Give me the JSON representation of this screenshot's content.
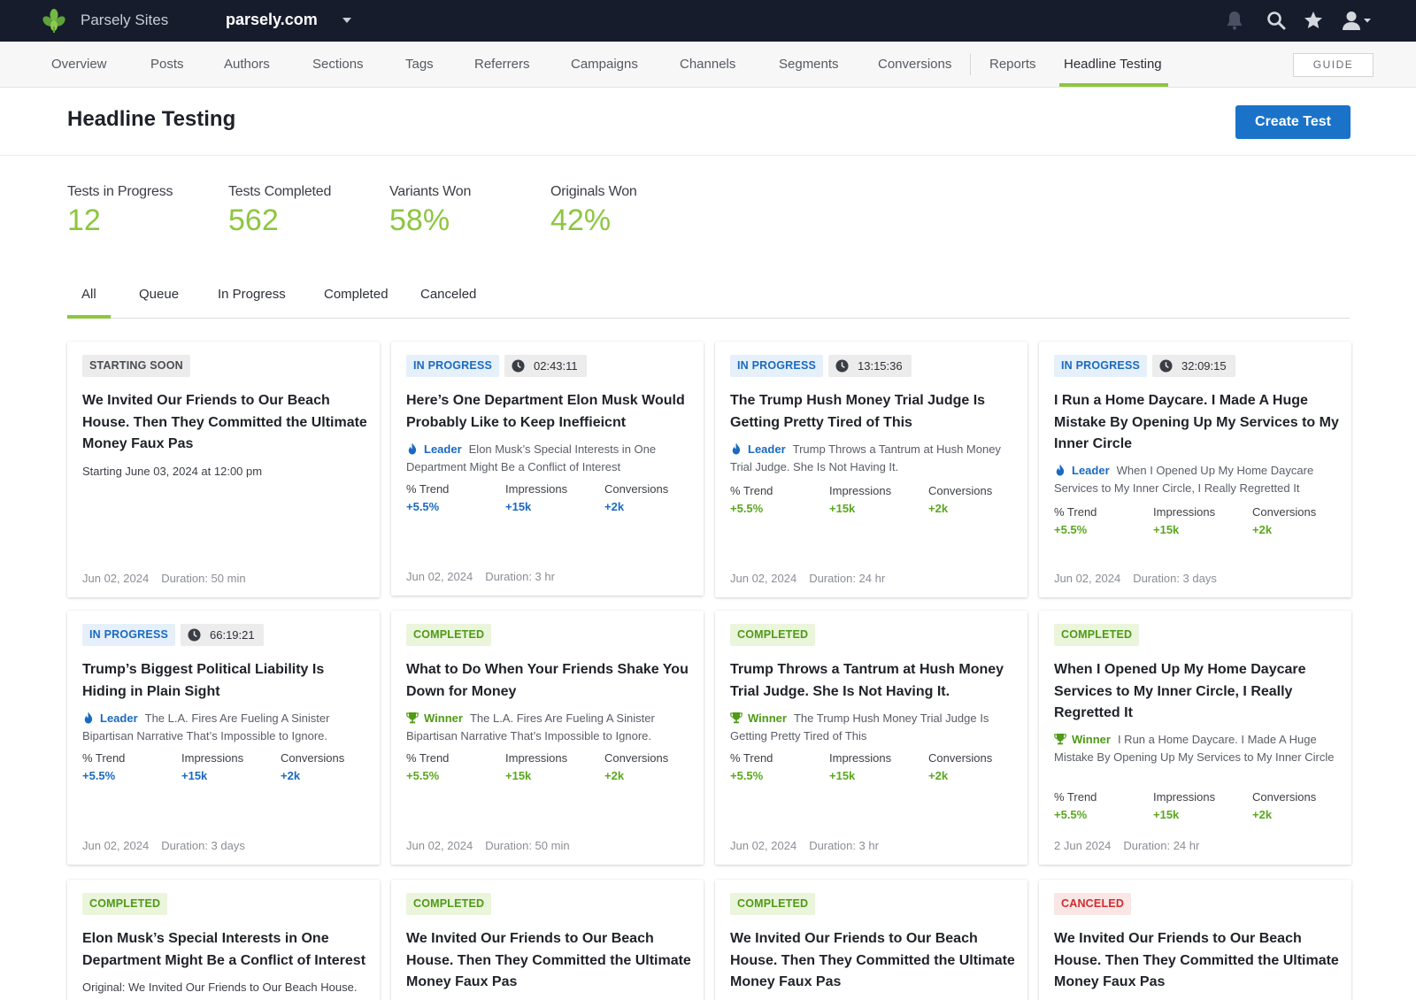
{
  "topbar": {
    "brand": "Parsely Sites",
    "site": "parsely.com"
  },
  "nav": {
    "items": [
      "Overview",
      "Posts",
      "Authors",
      "Sections",
      "Tags",
      "Referrers",
      "Campaigns",
      "Channels",
      "Segments",
      "Conversions",
      "Reports",
      "Headline Testing"
    ],
    "active": "Headline Testing",
    "guide": "GUIDE"
  },
  "header": {
    "title": "Headline Testing",
    "create_button": "Create Test"
  },
  "stats": [
    {
      "label": "Tests in Progress",
      "value": "12"
    },
    {
      "label": "Tests Completed",
      "value": "562"
    },
    {
      "label": "Variants Won",
      "value": "58%"
    },
    {
      "label": "Originals Won",
      "value": "42%"
    }
  ],
  "tabs": [
    "All",
    "Queue",
    "In Progress",
    "Completed",
    "Canceled"
  ],
  "metric_labels": {
    "trend": "% Trend",
    "impressions": "Impressions",
    "conversions": "Conversions"
  },
  "cards": [
    {
      "status": "STARTING SOON",
      "headline": "We Invited Our Friends to Our Beach House. Then They Committed the Ultimate Money Faux Pas",
      "start": "Starting June 03, 2024 at 12:00 pm",
      "date": "Jun 02, 2024",
      "duration": "Duration: 50 min"
    },
    {
      "status": "IN PROGRESS",
      "timer": "02:43:11",
      "headline": "Here’s One Department Elon Musk Would Probably Like to Keep Ineffieicnt",
      "tag": "Leader",
      "tag_text": "Elon Musk’s Special Interests in One Department Might Be a Conflict of Interest",
      "trend": "+5.5%",
      "impressions": "+15k",
      "conversions": "+2k",
      "date": "Jun 02, 2024",
      "duration": "Duration: 3 hr"
    },
    {
      "status": "IN PROGRESS",
      "timer": "13:15:36",
      "headline": "The Trump Hush Money Trial Judge Is Getting Pretty Tired of This",
      "tag": "Leader",
      "tag_text": "Trump Throws a Tantrum at Hush Money Trial Judge. She Is Not Having It.",
      "trend": "+5.5%",
      "impressions": "+15k",
      "conversions": "+2k",
      "date": "Jun 02, 2024",
      "duration": "Duration: 24 hr"
    },
    {
      "status": "IN PROGRESS",
      "timer": "32:09:15",
      "headline": "I Run a Home Daycare. I Made A Huge Mistake By Opening Up My Services to My Inner Circle",
      "tag": "Leader",
      "tag_text": "When I Opened Up My Home Daycare Services to My Inner Circle, I Really Regretted It",
      "trend": "+5.5%",
      "impressions": "+15k",
      "conversions": "+2k",
      "date": "Jun 02, 2024",
      "duration": "Duration: 3 days"
    },
    {
      "status": "IN PROGRESS",
      "timer": "66:19:21",
      "headline": "Trump’s Biggest Political Liability Is Hiding in Plain Sight",
      "tag": "Leader",
      "tag_text": "The L.A. Fires Are Fueling A Sinister Bipartisan Narrative That’s Impossible to Ignore.",
      "trend": "+5.5%",
      "impressions": "+15k",
      "conversions": "+2k",
      "date": "Jun 02, 2024",
      "duration": "Duration: 3 days"
    },
    {
      "status": "COMPLETED",
      "headline": "What to Do When Your Friends Shake You Down for Money",
      "tag": "Winner",
      "tag_text": "The L.A. Fires Are Fueling A Sinister Bipartisan Narrative That’s Impossible to Ignore.",
      "trend": "+5.5%",
      "impressions": "+15k",
      "conversions": "+2k",
      "date": "Jun 02, 2024",
      "duration": "Duration: 50 min"
    },
    {
      "status": "COMPLETED",
      "headline": "Trump Throws a Tantrum at Hush Money Trial Judge. She Is Not Having It.",
      "tag": "Winner",
      "tag_text": "The Trump Hush Money Trial Judge Is Getting Pretty Tired of This",
      "trend": "+5.5%",
      "impressions": "+15k",
      "conversions": "+2k",
      "date": "Jun 02, 2024",
      "duration": "Duration: 3 hr"
    },
    {
      "status": "COMPLETED",
      "headline": "When I Opened Up My Home Daycare Services to My Inner Circle, I Really Regretted It",
      "tag": "Winner",
      "tag_text": "I Run a Home Daycare. I Made A Huge Mistake By Opening Up My Services to My Inner Circle",
      "trend": "+5.5%",
      "impressions": "+15k",
      "conversions": "+2k",
      "date": "2 Jun 2024",
      "duration": "Duration: 24 hr"
    },
    {
      "status": "COMPLETED",
      "headline": "Elon Musk’s Special Interests in One Department Might Be a Conflict of Interest",
      "original": "Original:  We Invited Our Friends to Our Beach House. Then They Committed the Ultimate Money Faux Pas"
    },
    {
      "status": "COMPLETED",
      "headline": "We Invited Our Friends to Our Beach House. Then They Committed the Ultimate Money Faux Pas"
    },
    {
      "status": "COMPLETED",
      "headline": "We Invited Our Friends to Our Beach House. Then They Committed the Ultimate Money Faux Pas"
    },
    {
      "status": "CANCELED",
      "headline": "We Invited Our Friends to Our Beach House. Then They Committed the Ultimate Money Faux Pas"
    }
  ],
  "colors": {
    "topbar": "#161c2c",
    "accent_green": "#8cc63f",
    "primary_blue": "#1a73c8",
    "progress_badge": "#e6f0fa",
    "completed_badge": "#eaf5dc",
    "canceled_badge": "#fbe6e6"
  },
  "icons": [
    "parsely-leaf-logo",
    "bell-icon",
    "search-icon",
    "star-icon",
    "user-icon",
    "clock-icon",
    "flame-icon",
    "trophy-icon"
  ]
}
